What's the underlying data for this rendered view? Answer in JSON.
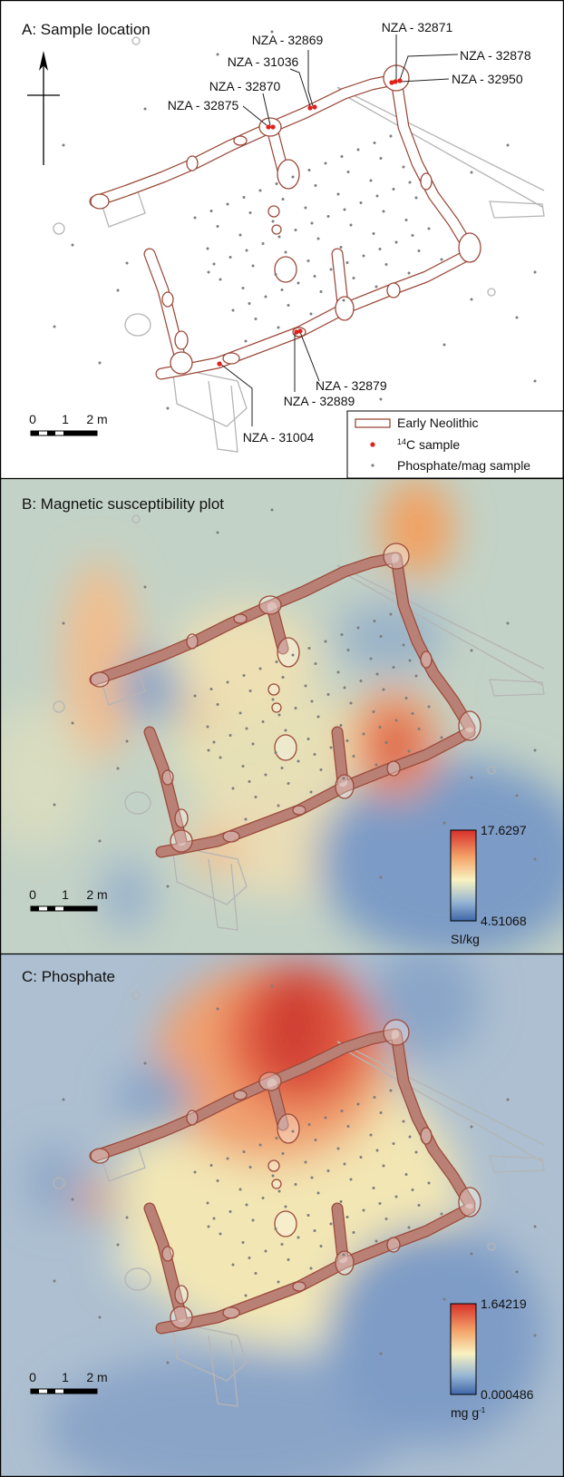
{
  "panels": [
    {
      "title": "A: Sample location",
      "scale": [
        "0",
        "1",
        "2 m"
      ],
      "samples": [
        "NZA - 32869",
        "NZA - 32871",
        "NZA - 32878",
        "NZA - 31036",
        "NZA - 32950",
        "NZA - 32870",
        "NZA - 32875",
        "NZA - 32879",
        "NZA - 32889",
        "NZA - 31004"
      ],
      "legend": [
        {
          "label": "Early Neolithic"
        },
        {
          "sup": "14",
          "label": "C sample"
        },
        {
          "label": "Phosphate/mag sample"
        }
      ]
    },
    {
      "title": "B: Magnetic susceptibility plot",
      "scale": [
        "0",
        "1",
        "2 m"
      ],
      "colorbar": {
        "max": "17.6297",
        "min": "4.51068",
        "unit": "SI/kg"
      }
    },
    {
      "title": "C: Phosphate",
      "scale": [
        "0",
        "1",
        "2 m"
      ],
      "colorbar": {
        "max": "1.64219",
        "min": "0.000486",
        "unit": "mg g",
        "unit_sup": "-1"
      }
    }
  ]
}
